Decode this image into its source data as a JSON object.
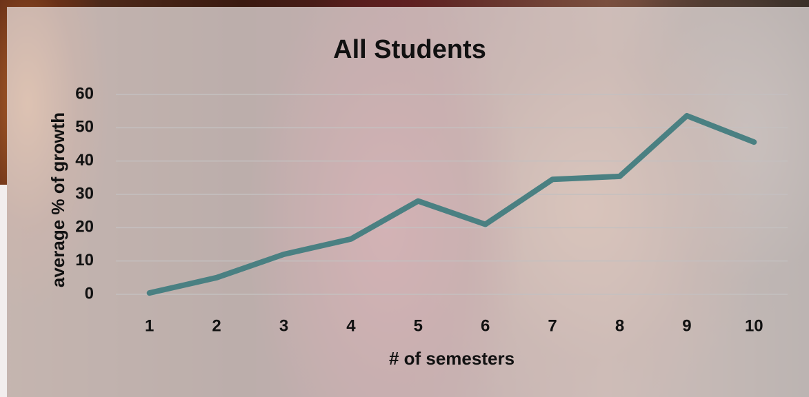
{
  "chart_data": {
    "type": "line",
    "title": "All Students",
    "x_label": "# of semesters",
    "y_label": "average % of growth",
    "categories": [
      "1",
      "2",
      "3",
      "4",
      "5",
      "6",
      "7",
      "8",
      "9",
      "10"
    ],
    "values": [
      0.4,
      5,
      12,
      16.6,
      28,
      21,
      34.5,
      35.4,
      53.6,
      45.7
    ],
    "color": "#4a8082",
    "ylim": [
      0,
      60
    ],
    "yticks": [
      0,
      10,
      20,
      30,
      40,
      50,
      60
    ],
    "grid": true
  }
}
